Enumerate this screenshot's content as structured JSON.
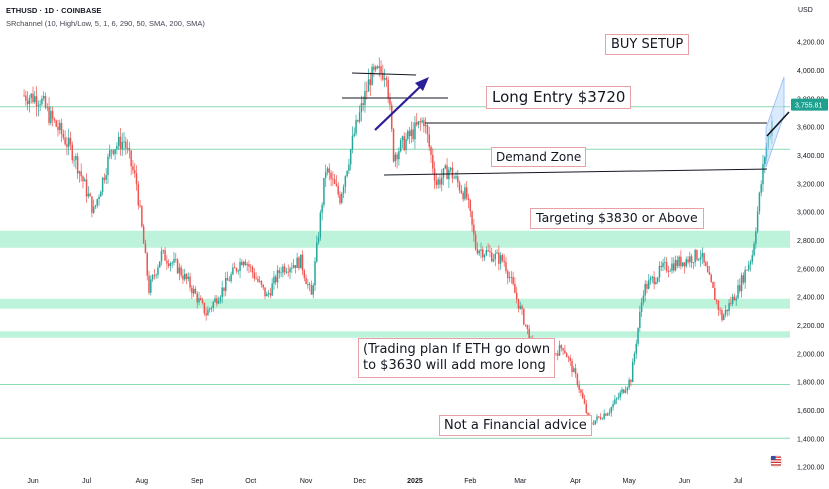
{
  "header": {
    "symbol_line": "ETHUSD · 1D · COINBASE",
    "indicator_line": "SRchannel (10, High/Low, 5, 1, 6, 290, 50, SMA, 200, SMA)",
    "currency": "USD"
  },
  "annotations": {
    "buy_setup": "BUY SETUP",
    "long_entry": "Long Entry $3720",
    "demand_zone": "Demand Zone",
    "targeting": "Targeting $3830 or Above",
    "plan_line1": "(Trading plan If ETH go down",
    "plan_line2": "to $3630 will add more long",
    "disclaimer": "Not a Financial advice"
  },
  "chart_data": {
    "type": "candlestick",
    "x_labels": [
      "Jun",
      "Jul",
      "Aug",
      "Sep",
      "Oct",
      "Nov",
      "Dec",
      "2025",
      "Feb",
      "Mar",
      "Apr",
      "May",
      "Jun",
      "Jul"
    ],
    "y_ticks": [
      1200,
      1400,
      1600,
      1800,
      2000,
      2200,
      2400,
      2600,
      2800,
      3000,
      3200,
      3400,
      3600,
      3800,
      4000,
      4200
    ],
    "y_tick_labels": [
      "1,200.00",
      "1,400.00",
      "1,600.00",
      "1,800.00",
      "2,000.00",
      "2,200.00",
      "2,400.00",
      "2,600.00",
      "2,800.00",
      "3,000.00",
      "3,200.00",
      "3,400.00",
      "3,600.00",
      "3,800.00",
      "4,000.00",
      "4,200.00"
    ],
    "y_range": [
      1100,
      4350
    ],
    "last_price_label": "3,755.81",
    "last_price": 3755.81,
    "zones": [
      {
        "from": 2745,
        "to": 2865
      },
      {
        "from": 2315,
        "to": 2385
      },
      {
        "from": 2110,
        "to": 2155
      }
    ],
    "levels": [
      3740,
      3440,
      1780,
      1400
    ],
    "trend_lines": [
      {
        "x1": "Dec",
        "y1": 3720,
        "x2": "Jan",
        "y2": 3720
      },
      {
        "x1": "Jan",
        "y1": 3570,
        "x2": "Jul",
        "y2": 3570
      },
      {
        "x1": "Dec",
        "y1": 3210,
        "x2": "Jul",
        "y2": 3240
      }
    ],
    "series_anchors": [
      [
        "2024-05-27",
        3820
      ],
      [
        "2024-06-05",
        3800
      ],
      [
        "2024-06-10",
        3680
      ],
      [
        "2024-06-17",
        3550
      ],
      [
        "2024-06-24",
        3400
      ],
      [
        "2024-07-05",
        3000
      ],
      [
        "2024-07-15",
        3450
      ],
      [
        "2024-07-22",
        3500
      ],
      [
        "2024-07-29",
        3200
      ],
      [
        "2024-08-05",
        2450
      ],
      [
        "2024-08-12",
        2700
      ],
      [
        "2024-08-20",
        2620
      ],
      [
        "2024-08-27",
        2500
      ],
      [
        "2024-09-06",
        2280
      ],
      [
        "2024-09-15",
        2450
      ],
      [
        "2024-09-27",
        2680
      ],
      [
        "2024-10-10",
        2400
      ],
      [
        "2024-10-18",
        2600
      ],
      [
        "2024-10-29",
        2650
      ],
      [
        "2024-11-04",
        2400
      ],
      [
        "2024-11-12",
        3300
      ],
      [
        "2024-11-20",
        3100
      ],
      [
        "2024-11-28",
        3550
      ],
      [
        "2024-12-07",
        3950
      ],
      [
        "2024-12-16",
        4000
      ],
      [
        "2024-12-20",
        3400
      ],
      [
        "2025-01-06",
        3650
      ],
      [
        "2025-01-13",
        3200
      ],
      [
        "2025-01-20",
        3300
      ],
      [
        "2025-01-30",
        3100
      ],
      [
        "2025-02-04",
        2750
      ],
      [
        "2025-02-20",
        2650
      ],
      [
        "2025-03-04",
        2200
      ],
      [
        "2025-03-11",
        1900
      ],
      [
        "2025-03-25",
        2050
      ],
      [
        "2025-04-02",
        1800
      ],
      [
        "2025-04-09",
        1500
      ],
      [
        "2025-04-20",
        1600
      ],
      [
        "2025-05-02",
        1820
      ],
      [
        "2025-05-09",
        2450
      ],
      [
        "2025-05-20",
        2600
      ],
      [
        "2025-06-10",
        2700
      ],
      [
        "2025-06-22",
        2250
      ],
      [
        "2025-07-01",
        2450
      ],
      [
        "2025-07-09",
        2700
      ],
      [
        "2025-07-16",
        3400
      ],
      [
        "2025-07-22",
        3756
      ]
    ]
  },
  "colors": {
    "up": "#26a69a",
    "down": "#ef5350",
    "zone": "#a5efcd",
    "level": "#8ad9b4",
    "trend": "#131722",
    "arrow": "#2b1e96",
    "channel": "#3b82f6",
    "price_tag": "#1fa08e",
    "note_border": "#e8a0a7"
  },
  "icons": {
    "flag": "us-flag-icon"
  }
}
